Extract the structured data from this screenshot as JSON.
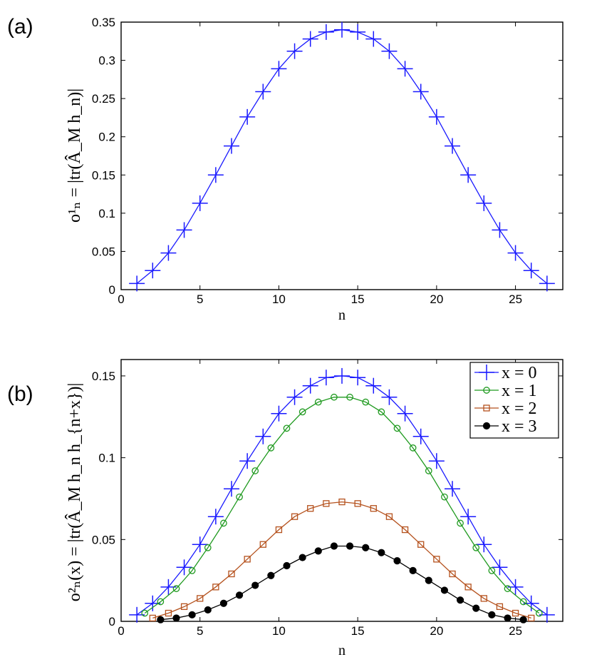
{
  "chart_data": [
    {
      "panel_label": "(a)",
      "type": "line",
      "xlabel": "n",
      "ylabel": "o¹ₙ = |tr(Â_M h_n)|",
      "xlim": [
        0,
        28
      ],
      "ylim": [
        0,
        0.35
      ],
      "xticks": [
        0,
        5,
        10,
        15,
        20,
        25
      ],
      "xtick_labels": [
        "0",
        "5",
        "10",
        "15",
        "20",
        "25"
      ],
      "yticks": [
        0,
        0.05,
        0.1,
        0.15,
        0.2,
        0.25,
        0.3,
        0.35
      ],
      "ytick_labels": [
        "0",
        "0.05",
        "0.1",
        "0.15",
        "0.2",
        "0.25",
        "0.3",
        "0.35"
      ],
      "grid": false,
      "series": [
        {
          "name": "o¹ₙ",
          "color": "#1a1aff",
          "marker": "plus",
          "x": [
            1,
            2,
            3,
            4,
            5,
            6,
            7,
            8,
            9,
            10,
            11,
            12,
            13,
            14,
            15,
            16,
            17,
            18,
            19,
            20,
            21,
            22,
            23,
            24,
            25,
            26,
            27
          ],
          "values": [
            0.008,
            0.025,
            0.048,
            0.078,
            0.113,
            0.15,
            0.188,
            0.226,
            0.259,
            0.289,
            0.312,
            0.328,
            0.337,
            0.34,
            0.337,
            0.328,
            0.312,
            0.289,
            0.259,
            0.226,
            0.188,
            0.15,
            0.113,
            0.078,
            0.048,
            0.025,
            0.008
          ]
        }
      ]
    },
    {
      "panel_label": "(b)",
      "type": "line",
      "xlabel": "n",
      "ylabel": "o²ₙ(x) = |tr(Â_M h_n h_{n+x})|",
      "xlim": [
        0,
        28
      ],
      "ylim": [
        0,
        0.16
      ],
      "xticks": [
        0,
        5,
        10,
        15,
        20,
        25
      ],
      "xtick_labels": [
        "0",
        "5",
        "10",
        "15",
        "20",
        "25"
      ],
      "yticks": [
        0,
        0.05,
        0.1,
        0.15
      ],
      "ytick_labels": [
        "0",
        "0.05",
        "0.1",
        "0.15"
      ],
      "grid": false,
      "legend_position": "top-right",
      "series": [
        {
          "name": "x = 0",
          "color": "#1a1aff",
          "marker": "plus",
          "x": [
            1,
            2,
            3,
            4,
            5,
            6,
            7,
            8,
            9,
            10,
            11,
            12,
            13,
            14,
            15,
            16,
            17,
            18,
            19,
            20,
            21,
            22,
            23,
            24,
            25,
            26,
            27
          ],
          "values": [
            0.004,
            0.011,
            0.021,
            0.033,
            0.047,
            0.064,
            0.081,
            0.098,
            0.113,
            0.127,
            0.137,
            0.144,
            0.149,
            0.15,
            0.149,
            0.144,
            0.137,
            0.127,
            0.113,
            0.098,
            0.081,
            0.064,
            0.047,
            0.033,
            0.021,
            0.011,
            0.004
          ]
        },
        {
          "name": "x = 1",
          "color": "#1f9a1f",
          "marker": "circle",
          "x": [
            1.5,
            2.5,
            3.5,
            4.5,
            5.5,
            6.5,
            7.5,
            8.5,
            9.5,
            10.5,
            11.5,
            12.5,
            13.5,
            14.5,
            15.5,
            16.5,
            17.5,
            18.5,
            19.5,
            20.5,
            21.5,
            22.5,
            23.5,
            24.5,
            25.5,
            26.5
          ],
          "values": [
            0.005,
            0.012,
            0.02,
            0.031,
            0.045,
            0.06,
            0.076,
            0.092,
            0.106,
            0.118,
            0.128,
            0.134,
            0.137,
            0.137,
            0.134,
            0.128,
            0.118,
            0.106,
            0.092,
            0.076,
            0.06,
            0.045,
            0.031,
            0.02,
            0.012,
            0.005
          ]
        },
        {
          "name": "x = 2",
          "color": "#b5521e",
          "marker": "square",
          "x": [
            2,
            3,
            4,
            5,
            6,
            7,
            8,
            9,
            10,
            11,
            12,
            13,
            14,
            15,
            16,
            17,
            18,
            19,
            20,
            21,
            22,
            23,
            24,
            25,
            26
          ],
          "values": [
            0.002,
            0.005,
            0.009,
            0.014,
            0.021,
            0.029,
            0.038,
            0.047,
            0.056,
            0.064,
            0.069,
            0.072,
            0.073,
            0.072,
            0.069,
            0.064,
            0.056,
            0.047,
            0.038,
            0.029,
            0.021,
            0.014,
            0.009,
            0.005,
            0.002
          ]
        },
        {
          "name": "x = 3",
          "color": "#000000",
          "marker": "filled-circle",
          "x": [
            2.5,
            3.5,
            4.5,
            5.5,
            6.5,
            7.5,
            8.5,
            9.5,
            10.5,
            11.5,
            12.5,
            13.5,
            14.5,
            15.5,
            16.5,
            17.5,
            18.5,
            19.5,
            20.5,
            21.5,
            22.5,
            23.5,
            24.5,
            25.5
          ],
          "values": [
            0.001,
            0.002,
            0.004,
            0.007,
            0.011,
            0.016,
            0.022,
            0.028,
            0.034,
            0.039,
            0.043,
            0.046,
            0.046,
            0.045,
            0.042,
            0.037,
            0.031,
            0.025,
            0.019,
            0.013,
            0.008,
            0.004,
            0.002,
            0.001
          ]
        }
      ]
    }
  ]
}
